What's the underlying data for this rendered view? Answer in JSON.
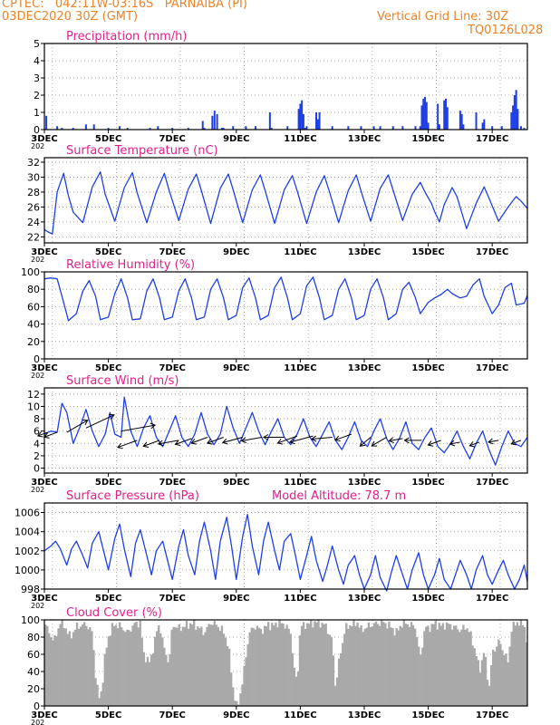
{
  "header": {
    "station_line": "CPTEC:   042:11W-03:16S   PARNAIBA (PI)",
    "date_line": "03DEC2020 30Z (GMT)",
    "grid_note": "Vertical Grid Line: 30Z",
    "code": "TQ0126L028"
  },
  "colors": {
    "header": "#e8842a",
    "panel_title": "#e0218a",
    "series": "#1f3fe6",
    "cloud": "#a9a9a9",
    "grid": "#9a9a9a"
  },
  "x_axis": {
    "start_day": 3,
    "end_day": 18.1,
    "tick_labels": [
      "3DEC",
      "5DEC",
      "7DEC",
      "9DEC",
      "11DEC",
      "13DEC",
      "15DEC",
      "17DEC"
    ],
    "tick_days": [
      3,
      5,
      7,
      9,
      11,
      13,
      15,
      17
    ],
    "year_stub": "202"
  },
  "chart_data": [
    {
      "id": "precipitation",
      "type": "bar",
      "title": "Precipitation (mm/h)",
      "ylim": [
        0,
        5
      ],
      "yticks": [
        0,
        1,
        2,
        3,
        4,
        5
      ],
      "grid": true,
      "x_day": [
        3.06,
        3.4,
        3.55,
        3.9,
        4.3,
        4.55,
        5.0,
        5.35,
        5.6,
        6.3,
        6.55,
        7.0,
        7.5,
        7.95,
        8.0,
        8.25,
        8.32,
        8.4,
        8.55,
        8.6,
        8.9,
        9.3,
        9.6,
        10.05,
        10.1,
        10.6,
        10.95,
        11.0,
        11.05,
        11.1,
        11.15,
        11.2,
        11.5,
        11.55,
        11.6,
        12.0,
        12.5,
        12.9,
        13.3,
        13.5,
        13.9,
        14.2,
        14.6,
        14.75,
        14.8,
        14.85,
        14.9,
        14.95,
        15.0,
        15.3,
        15.35,
        15.5,
        15.55,
        15.6,
        16.0,
        16.05,
        16.1,
        16.5,
        16.7,
        16.75,
        17.0,
        17.3,
        17.6,
        17.65,
        17.7,
        17.75,
        17.8,
        17.9,
        18.0
      ],
      "values": [
        0.8,
        0.2,
        0.1,
        0.1,
        0.3,
        0.3,
        0.1,
        0.2,
        0.1,
        0.1,
        0.2,
        0.1,
        0.1,
        0.5,
        0.1,
        0.8,
        1.1,
        0.9,
        0.1,
        0.1,
        0.2,
        0.2,
        0.2,
        1.0,
        0.1,
        0.2,
        1.2,
        1.5,
        1.7,
        0.9,
        0.1,
        0.2,
        1.0,
        0.6,
        1.0,
        0.2,
        0.2,
        0.2,
        0.2,
        0.2,
        0.2,
        0.2,
        0.2,
        0.2,
        1.4,
        1.8,
        1.9,
        1.6,
        0.4,
        1.5,
        0.3,
        1.7,
        1.8,
        1.3,
        1.1,
        0.9,
        0.3,
        1.0,
        0.4,
        0.6,
        0.2,
        0.2,
        1.0,
        1.4,
        2.0,
        2.3,
        1.2,
        0.2,
        0.1
      ]
    },
    {
      "id": "temperature",
      "type": "line",
      "title": "Surface Temperature (nC)",
      "ylim": [
        21.2,
        32.6
      ],
      "yticks": [
        22,
        24,
        26,
        28,
        30,
        32
      ],
      "grid": true,
      "x_day": [
        3.0,
        3.1,
        3.25,
        3.4,
        3.6,
        3.75,
        3.9,
        4.2,
        4.5,
        4.75,
        4.9,
        5.2,
        5.5,
        5.75,
        5.9,
        6.2,
        6.5,
        6.75,
        6.9,
        7.2,
        7.5,
        7.75,
        7.9,
        8.2,
        8.5,
        8.75,
        8.9,
        9.2,
        9.5,
        9.75,
        9.9,
        10.2,
        10.5,
        10.75,
        10.9,
        11.2,
        11.5,
        11.75,
        11.9,
        12.2,
        12.5,
        12.75,
        12.9,
        13.2,
        13.5,
        13.75,
        13.9,
        14.2,
        14.5,
        14.75,
        14.9,
        15.1,
        15.2,
        15.35,
        15.5,
        15.75,
        15.9,
        16.2,
        16.5,
        16.75,
        16.9,
        17.2,
        17.5,
        17.75,
        17.9,
        18.1
      ],
      "values": [
        23.0,
        22.7,
        22.4,
        28.0,
        30.5,
        27.5,
        25.3,
        23.9,
        28.7,
        30.7,
        27.7,
        24.1,
        28.6,
        30.6,
        27.9,
        23.9,
        28.0,
        30.5,
        28.2,
        24.2,
        28.4,
        30.4,
        28.3,
        23.8,
        28.5,
        30.4,
        28.3,
        23.9,
        28.3,
        30.3,
        28.2,
        23.8,
        28.3,
        30.2,
        28.2,
        23.8,
        28.0,
        30.2,
        28.2,
        23.9,
        28.2,
        30.3,
        28.1,
        24.1,
        28.5,
        30.3,
        28.3,
        24.2,
        27.7,
        29.3,
        28.0,
        26.5,
        25.4,
        24.0,
        26.3,
        28.6,
        27.4,
        23.1,
        26.5,
        28.7,
        27.2,
        24.1,
        26.0,
        27.4,
        26.8,
        25.8
      ]
    },
    {
      "id": "humidity",
      "type": "line",
      "title": "Relative Humidity (%)",
      "ylim": [
        0,
        100
      ],
      "yticks": [
        0,
        20,
        40,
        60,
        80,
        100
      ],
      "grid": true,
      "x_day": [
        3.0,
        3.2,
        3.4,
        3.6,
        3.75,
        4.0,
        4.2,
        4.4,
        4.6,
        4.75,
        5.0,
        5.2,
        5.4,
        5.6,
        5.75,
        6.0,
        6.2,
        6.4,
        6.6,
        6.75,
        7.0,
        7.2,
        7.4,
        7.6,
        7.75,
        8.0,
        8.2,
        8.4,
        8.6,
        8.75,
        9.0,
        9.2,
        9.4,
        9.6,
        9.75,
        10.0,
        10.2,
        10.4,
        10.6,
        10.75,
        11.0,
        11.2,
        11.4,
        11.6,
        11.75,
        12.0,
        12.2,
        12.4,
        12.6,
        12.75,
        13.0,
        13.2,
        13.4,
        13.6,
        13.75,
        14.0,
        14.2,
        14.4,
        14.6,
        14.75,
        15.0,
        15.2,
        15.4,
        15.6,
        15.75,
        16.0,
        16.2,
        16.4,
        16.6,
        16.75,
        17.0,
        17.2,
        17.4,
        17.6,
        17.75,
        18.0,
        18.1
      ],
      "values": [
        92,
        93,
        92,
        65,
        44,
        52,
        78,
        90,
        72,
        45,
        48,
        75,
        92,
        70,
        45,
        46,
        78,
        92,
        70,
        45,
        48,
        78,
        92,
        70,
        45,
        48,
        80,
        92,
        70,
        45,
        50,
        82,
        93,
        70,
        45,
        50,
        82,
        94,
        70,
        45,
        52,
        84,
        94,
        70,
        45,
        50,
        80,
        92,
        70,
        45,
        50,
        80,
        92,
        70,
        45,
        52,
        80,
        88,
        70,
        52,
        65,
        70,
        74,
        80,
        75,
        70,
        72,
        85,
        92,
        72,
        52,
        62,
        82,
        87,
        62,
        64,
        73
      ]
    },
    {
      "id": "wind",
      "type": "line",
      "title": "Surface Wind (m/s)",
      "ylim": [
        -0.8,
        13
      ],
      "yticks": [
        0,
        2,
        4,
        6,
        8,
        10,
        12
      ],
      "grid": true,
      "x_day": [
        3.0,
        3.2,
        3.4,
        3.55,
        3.7,
        3.9,
        4.1,
        4.3,
        4.5,
        4.7,
        4.9,
        5.05,
        5.2,
        5.4,
        5.5,
        5.7,
        5.9,
        6.1,
        6.3,
        6.5,
        6.7,
        6.9,
        7.1,
        7.3,
        7.5,
        7.7,
        7.9,
        8.1,
        8.3,
        8.5,
        8.7,
        8.9,
        9.1,
        9.3,
        9.5,
        9.7,
        9.9,
        10.1,
        10.3,
        10.5,
        10.7,
        10.9,
        11.1,
        11.3,
        11.5,
        11.7,
        11.9,
        12.1,
        12.3,
        12.5,
        12.7,
        12.9,
        13.1,
        13.3,
        13.5,
        13.7,
        13.9,
        14.1,
        14.3,
        14.5,
        14.7,
        14.9,
        15.1,
        15.3,
        15.5,
        15.7,
        15.9,
        16.1,
        16.3,
        16.5,
        16.7,
        16.9,
        17.1,
        17.3,
        17.5,
        17.7,
        17.9,
        18.1
      ],
      "values": [
        5.5,
        6.0,
        5.8,
        10.5,
        9.0,
        4.0,
        6.5,
        9.5,
        6.0,
        3.5,
        5.5,
        9.0,
        5.5,
        5.0,
        11.5,
        6.0,
        3.5,
        6.5,
        8.5,
        5.0,
        3.5,
        6.0,
        8.5,
        5.0,
        3.5,
        5.5,
        9.0,
        5.5,
        3.8,
        5.5,
        10.0,
        6.5,
        4.0,
        6.5,
        9.0,
        6.0,
        3.8,
        6.0,
        8.0,
        5.0,
        3.8,
        5.5,
        8.0,
        5.0,
        3.5,
        5.5,
        7.5,
        4.5,
        3.0,
        5.0,
        7.5,
        4.5,
        3.5,
        6.0,
        8.0,
        4.8,
        3.0,
        4.8,
        7.5,
        4.0,
        3.0,
        5.0,
        6.5,
        3.5,
        2.5,
        4.0,
        6.0,
        3.5,
        1.5,
        4.0,
        6.0,
        3.0,
        0.5,
        3.5,
        6.0,
        4.0,
        3.5,
        5.0
      ],
      "arrows": {
        "x_day": [
          3.1,
          3.4,
          3.7,
          4.3,
          5.4,
          5.9,
          6.6,
          7.2,
          7.6,
          8.1,
          8.6,
          9.2,
          9.8,
          10.5,
          10.9,
          11.4,
          12.0,
          12.6,
          13.2,
          13.7,
          14.2,
          14.8,
          15.4,
          16.0,
          16.6,
          17.2,
          17.9
        ],
        "y": [
          5.8,
          5.8,
          5.8,
          6.5,
          6.0,
          4.5,
          4.5,
          4.5,
          4.8,
          5.0,
          5.0,
          5.0,
          5.0,
          5.0,
          5.2,
          5.2,
          5.0,
          5.5,
          5.0,
          5.0,
          4.8,
          4.5,
          4.5,
          4.2,
          4.2,
          4.5,
          4.5
        ],
        "direction_deg": [
          200,
          200,
          30,
          25,
          10,
          200,
          200,
          190,
          200,
          200,
          200,
          195,
          190,
          180,
          200,
          195,
          185,
          200,
          220,
          210,
          190,
          180,
          200,
          190,
          200,
          190,
          200
        ],
        "length": [
          0.3,
          0.4,
          0.7,
          0.9,
          1.0,
          0.6,
          0.5,
          0.6,
          0.5,
          0.5,
          0.5,
          0.6,
          0.6,
          0.6,
          0.6,
          0.7,
          0.6,
          0.5,
          0.4,
          0.5,
          0.4,
          0.5,
          0.4,
          0.3,
          0.3,
          0.3,
          0.3
        ]
      }
    },
    {
      "id": "pressure",
      "type": "line",
      "title": "Surface Pressure (hPa)",
      "subtitle": "Model Altitude: 78.7  m",
      "ylim": [
        998,
        1007
      ],
      "yticks": [
        998,
        1000,
        1002,
        1004,
        1006
      ],
      "grid": true,
      "x_day": [
        3.0,
        3.2,
        3.35,
        3.5,
        3.7,
        3.85,
        4.0,
        4.2,
        4.35,
        4.5,
        4.7,
        4.85,
        5.0,
        5.2,
        5.35,
        5.5,
        5.7,
        5.85,
        6.0,
        6.2,
        6.35,
        6.5,
        6.7,
        6.85,
        7.0,
        7.2,
        7.35,
        7.5,
        7.7,
        7.85,
        8.0,
        8.2,
        8.35,
        8.5,
        8.7,
        8.85,
        9.0,
        9.2,
        9.35,
        9.5,
        9.7,
        9.85,
        10.0,
        10.2,
        10.35,
        10.5,
        10.7,
        10.85,
        11.0,
        11.2,
        11.35,
        11.5,
        11.7,
        11.85,
        12.0,
        12.2,
        12.35,
        12.5,
        12.7,
        12.85,
        13.0,
        13.2,
        13.35,
        13.5,
        13.7,
        13.85,
        14.0,
        14.2,
        14.35,
        14.5,
        14.7,
        14.85,
        15.0,
        15.2,
        15.35,
        15.5,
        15.7,
        15.85,
        16.0,
        16.2,
        16.35,
        16.5,
        16.7,
        16.85,
        17.0,
        17.2,
        17.35,
        17.5,
        17.7,
        17.85,
        18.0,
        18.1
      ],
      "values": [
        1002.0,
        1002.5,
        1003.0,
        1002.2,
        1000.5,
        1002.2,
        1003.0,
        1001.5,
        1000.2,
        1002.8,
        1004.0,
        1002.0,
        1000.0,
        1003.3,
        1004.8,
        1002.2,
        999.3,
        1002.8,
        1004.2,
        1001.5,
        999.5,
        1002.0,
        1003.0,
        1001.0,
        999.0,
        1002.5,
        1004.2,
        1001.5,
        999.5,
        1003.0,
        1005.0,
        1002.0,
        999.0,
        1003.0,
        1005.5,
        1002.5,
        999.0,
        1003.5,
        1005.8,
        1002.5,
        999.5,
        1003.0,
        1005.0,
        1002.0,
        1000.0,
        1003.0,
        1003.8,
        1001.5,
        999.0,
        1001.5,
        1003.5,
        1001.0,
        998.8,
        1000.5,
        1002.5,
        1000.0,
        998.5,
        1000.5,
        1001.5,
        999.5,
        998.0,
        999.5,
        1001.5,
        999.2,
        997.8,
        999.8,
        1001.5,
        999.5,
        998.0,
        1000.0,
        1001.8,
        999.5,
        998.0,
        999.5,
        1001.2,
        999.0,
        998.0,
        999.5,
        1001.0,
        999.5,
        998.0,
        1000.0,
        1001.5,
        999.5,
        998.5,
        1000.0,
        1001.0,
        999.5,
        998.0,
        999.0,
        1000.5,
        998.8
      ]
    },
    {
      "id": "cloud",
      "type": "area",
      "title": "Cloud Cover (%)",
      "ylim": [
        0,
        100
      ],
      "yticks": [
        0,
        20,
        40,
        60,
        80,
        100
      ],
      "grid": true,
      "x_day": [
        3.0,
        3.05,
        3.3,
        3.5,
        3.6,
        3.8,
        4.0,
        4.3,
        4.5,
        4.6,
        4.7,
        4.8,
        4.9,
        5.0,
        5.1,
        5.2,
        5.4,
        5.6,
        5.8,
        6.0,
        6.1,
        6.3,
        6.5,
        6.6,
        6.75,
        6.9,
        7.0,
        7.2,
        7.4,
        7.6,
        7.8,
        8.0,
        8.2,
        8.4,
        8.6,
        8.75,
        8.9,
        9.0,
        9.05,
        9.2,
        9.4,
        9.6,
        9.75,
        9.9,
        10.0,
        10.1,
        10.3,
        10.5,
        10.7,
        10.8,
        10.9,
        11.0,
        11.2,
        11.4,
        11.6,
        11.8,
        12.0,
        12.1,
        12.2,
        12.4,
        12.6,
        12.8,
        12.9,
        13.0,
        13.2,
        13.4,
        13.6,
        13.8,
        14.0,
        14.2,
        14.4,
        14.6,
        14.75,
        14.9,
        15.0,
        15.2,
        15.4,
        15.6,
        15.8,
        16.0,
        16.2,
        16.3,
        16.5,
        16.6,
        16.75,
        16.9,
        17.0,
        17.2,
        17.4,
        17.5,
        17.6,
        17.8,
        18.0,
        18.1
      ],
      "values": [
        98,
        92,
        75,
        98,
        95,
        80,
        92,
        95,
        85,
        35,
        8,
        20,
        60,
        80,
        90,
        95,
        92,
        85,
        95,
        97,
        60,
        50,
        85,
        95,
        65,
        50,
        95,
        90,
        93,
        96,
        92,
        85,
        97,
        94,
        86,
        70,
        20,
        0,
        0,
        30,
        85,
        93,
        88,
        90,
        96,
        92,
        97,
        95,
        85,
        45,
        25,
        92,
        95,
        97,
        97,
        93,
        75,
        20,
        50,
        90,
        95,
        97,
        88,
        90,
        94,
        96,
        97,
        93,
        85,
        97,
        95,
        92,
        55,
        92,
        90,
        96,
        93,
        95,
        92,
        88,
        92,
        85,
        60,
        40,
        65,
        20,
        60,
        75,
        60,
        50,
        90,
        98,
        95,
        70
      ]
    }
  ]
}
